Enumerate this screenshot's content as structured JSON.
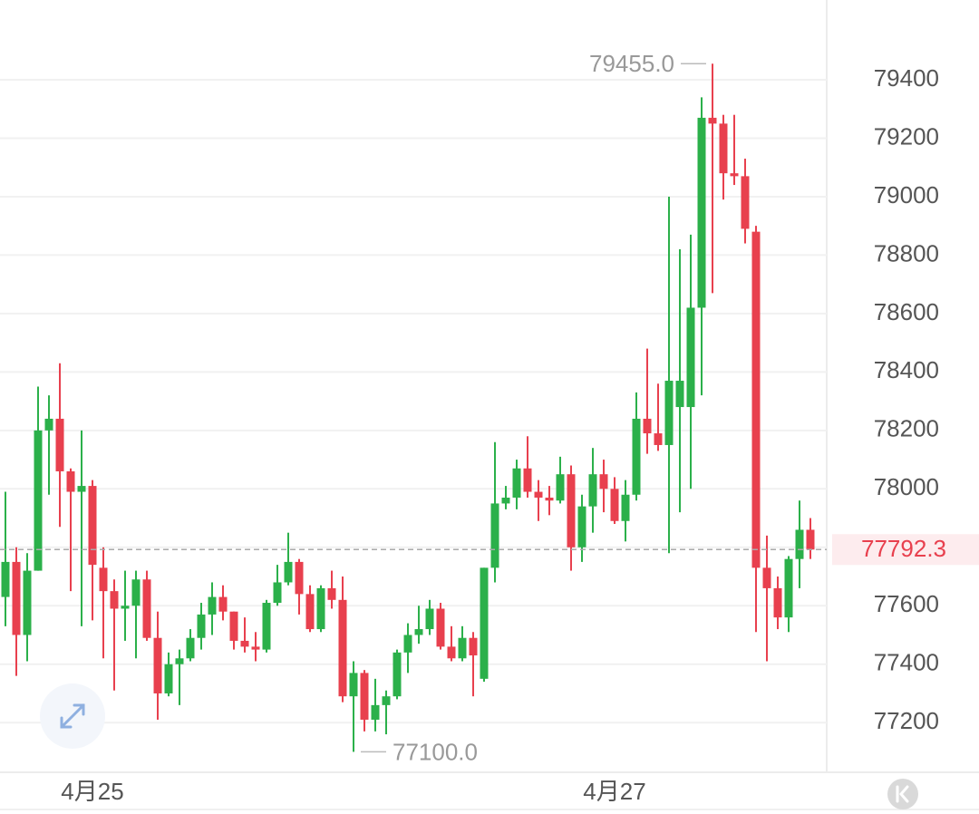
{
  "chart_data": {
    "type": "candlestick",
    "categories": [
      null,
      null,
      null,
      null,
      null,
      null,
      null,
      null,
      "4月25",
      null,
      null,
      null,
      null,
      null,
      null,
      null,
      null,
      null,
      null,
      null,
      null,
      null,
      null,
      null,
      null,
      null,
      null,
      null,
      null,
      null,
      null,
      null,
      null,
      null,
      null,
      null,
      null,
      null,
      null,
      null,
      null,
      null,
      null,
      null,
      null,
      null,
      null,
      null,
      null,
      null,
      null,
      null,
      null,
      null,
      null,
      null,
      "4月27",
      null,
      null,
      null,
      null,
      null,
      null,
      null,
      null,
      null,
      null,
      null,
      null,
      null,
      null,
      null,
      null,
      null,
      null
    ],
    "open": [
      77630,
      77750,
      77500,
      77720,
      78200,
      78240,
      78060,
      77990,
      78010,
      77730,
      77650,
      77590,
      77600,
      77690,
      77490,
      77300,
      77400,
      77420,
      77490,
      77570,
      77630,
      77580,
      77480,
      77460,
      77450,
      77610,
      77680,
      77750,
      77640,
      77520,
      77660,
      77620,
      77290,
      77370,
      77210,
      77260,
      77290,
      77440,
      77500,
      77520,
      77590,
      77460,
      77420,
      77490,
      77350,
      77730,
      77950,
      77970,
      78070,
      77990,
      77970,
      77960,
      78050,
      77800,
      77940,
      78050,
      78000,
      77890,
      77980,
      78240,
      78190,
      78150,
      78280,
      78280,
      78620,
      79270,
      79250,
      79080,
      79070,
      78880,
      77730,
      77660,
      77560,
      77760,
      77860
    ],
    "high": [
      77990,
      77800,
      77780,
      78350,
      78320,
      78430,
      78070,
      78200,
      78030,
      77800,
      77690,
      77720,
      77720,
      77720,
      77580,
      77440,
      77450,
      77520,
      77610,
      77680,
      77670,
      77580,
      77560,
      77510,
      77620,
      77740,
      77850,
      77760,
      77670,
      77670,
      77720,
      77700,
      77410,
      77380,
      77350,
      77310,
      77450,
      77540,
      77600,
      77620,
      77610,
      77530,
      77530,
      77510,
      77730,
      78160,
      78010,
      78100,
      78180,
      78030,
      78010,
      78110,
      78080,
      77980,
      78140,
      78100,
      78040,
      78030,
      78330,
      78480,
      78360,
      79000,
      78820,
      78870,
      79340,
      79455,
      79280,
      79280,
      79130,
      78900,
      77840,
      77700,
      77770,
      77960,
      77900
    ],
    "low": [
      77530,
      77360,
      77410,
      77720,
      77980,
      77870,
      77650,
      77530,
      77550,
      77420,
      77310,
      77480,
      77420,
      77480,
      77210,
      77290,
      77260,
      77410,
      77450,
      77500,
      77550,
      77450,
      77440,
      77410,
      77440,
      77600,
      77670,
      77570,
      77510,
      77510,
      77590,
      77270,
      77100,
      77170,
      77170,
      77160,
      77280,
      77370,
      77470,
      77500,
      77450,
      77410,
      77410,
      77290,
      77340,
      77680,
      77930,
      77930,
      77970,
      77890,
      77910,
      77950,
      77720,
      77750,
      77850,
      77920,
      77880,
      77820,
      77960,
      78120,
      78130,
      77780,
      77920,
      78000,
      78320,
      78670,
      78990,
      79040,
      78840,
      77510,
      77410,
      77520,
      77510,
      77660,
      77760
    ],
    "close": [
      77750,
      77500,
      77720,
      78200,
      78240,
      78060,
      77990,
      78010,
      77740,
      77650,
      77590,
      77600,
      77690,
      77490,
      77300,
      77400,
      77420,
      77490,
      77570,
      77630,
      77580,
      77480,
      77460,
      77450,
      77610,
      77680,
      77750,
      77640,
      77520,
      77660,
      77620,
      77290,
      77370,
      77210,
      77260,
      77290,
      77440,
      77500,
      77520,
      77590,
      77460,
      77420,
      77490,
      77430,
      77730,
      77950,
      77970,
      78070,
      77990,
      77970,
      77960,
      78050,
      77800,
      77940,
      78050,
      78000,
      77890,
      77980,
      78240,
      78190,
      78150,
      78370,
      78370,
      78620,
      79270,
      79250,
      79080,
      79070,
      78890,
      77730,
      77660,
      77560,
      77760,
      77860,
      77792.3
    ],
    "up_color": "#2bb04a",
    "down_color": "#e8404e",
    "ylim": [
      77030,
      79673
    ],
    "yticks": [
      77200,
      77400,
      77600,
      77800,
      78000,
      78200,
      78400,
      78600,
      78800,
      79000,
      79200,
      79400
    ],
    "grid": true,
    "last_price": 77792.3,
    "max_label": {
      "value": 79455,
      "label": "79455.0"
    },
    "min_label": {
      "value": 77100,
      "label": "77100.0"
    }
  }
}
